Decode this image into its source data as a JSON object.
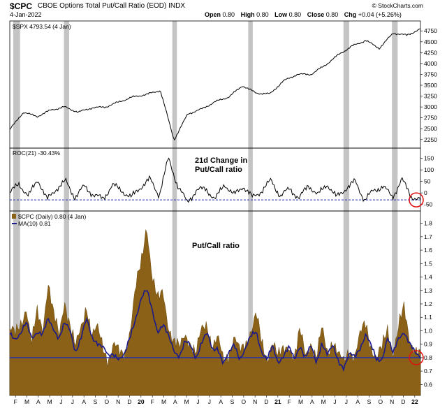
{
  "header": {
    "symbol": "$CPC",
    "title": "CBOE Options Total Put/Call Ratio (EOD)  INDX",
    "date": "4-Jan-2022",
    "brand": "© StockCharts.com",
    "open_label": "Open",
    "open_value": "0.80",
    "high_label": "High",
    "high_value": "0.80",
    "low_label": "Low",
    "low_value": "0.80",
    "close_label": "Close",
    "close_value": "0.80",
    "chg_label": "Chg",
    "chg_value": "+0.04 (+5.26%)"
  },
  "colors": {
    "spx_line": "#000000",
    "roc_line": "#000000",
    "roc_ref": "#1f2fb5",
    "cpc_fill": "#8a6116",
    "ma_line": "#1a1a8c",
    "ref_line": "#1f2fb5",
    "shade": "#c4c4c4",
    "circle": "#e01010"
  },
  "chart_data": [
    {
      "type": "line",
      "legend": "$SPX 4793.54 (4 Jan)",
      "series": [
        {
          "name": "$SPX",
          "x": [
            "2019-01",
            "2019-04",
            "2019-05",
            "2019-06",
            "2019-07",
            "2019-08",
            "2019-09",
            "2019-10",
            "2019-11",
            "2019-12",
            "2020-01",
            "2020-02",
            "2020-03",
            "2020-04",
            "2020-05",
            "2020-06",
            "2020-07",
            "2020-08",
            "2020-09",
            "2020-10",
            "2020-11",
            "2020-12",
            "2021-01",
            "2021-03",
            "2021-05",
            "2021-07",
            "2021-09",
            "2021-10",
            "2021-11",
            "2021-12",
            "2022-01"
          ],
          "values": [
            2480,
            2880,
            2780,
            2930,
            3000,
            2880,
            2980,
            3000,
            3120,
            3230,
            3290,
            3380,
            2240,
            2840,
            2950,
            3120,
            3230,
            3490,
            3320,
            3300,
            3600,
            3750,
            3750,
            3950,
            4200,
            4400,
            4530,
            4350,
            4700,
            4650,
            4793
          ]
        }
      ],
      "ylim": [
        2150,
        4850
      ],
      "yticks": [
        "4750",
        "4500",
        "4250",
        "4000",
        "3750",
        "3500",
        "3250",
        "3000",
        "2750",
        "2500",
        "2250"
      ]
    },
    {
      "type": "line",
      "legend": "ROC(21) -30.43%",
      "annotation": "21d Change in Put/Call ratio",
      "series": [
        {
          "name": "ROC(21)",
          "values": [
            0,
            40,
            -15,
            60,
            -30,
            20,
            50,
            -20,
            30,
            -10,
            -25,
            35,
            10,
            -20,
            25,
            60,
            -10,
            150,
            30,
            -40,
            10,
            20,
            -30,
            40,
            -10,
            30,
            -20,
            10,
            55,
            -15,
            20,
            -25,
            35,
            -10,
            40,
            -20,
            20,
            50,
            -30,
            10,
            30,
            -20,
            60,
            -15,
            -30
          ]
        }
      ],
      "reference": -30,
      "ylim": [
        -60,
        170
      ],
      "yticks": [
        "150",
        "100",
        "50",
        "0",
        "-50"
      ]
    },
    {
      "type": "area",
      "legend_cpc": "$CPC (Daily) 0.80 (4 Jan)",
      "legend_ma": "MA(10) 0.81",
      "annotation": "Put/Call ratio",
      "series": [
        {
          "name": "$CPC",
          "values": [
            1.02,
            0.95,
            1.05,
            1.2,
            0.9,
            1.12,
            1.02,
            1.38,
            1.1,
            0.95,
            1.25,
            1.05,
            0.85,
            1.02,
            1.22,
            0.95,
            1.0,
            0.9,
            0.8,
            0.88,
            0.82,
            0.85,
            1.02,
            1.3,
            1.5,
            1.82,
            1.4,
            1.2,
            1.3,
            1.05,
            0.9,
            0.85,
            1.0,
            0.92,
            0.8,
            1.0,
            1.08,
            0.88,
            0.92,
            0.78,
            0.85,
            0.95,
            0.82,
            0.9,
            1.02,
            1.12,
            0.88,
            0.8,
            0.95,
            0.78,
            0.85,
            0.92,
            0.8,
            0.98,
            0.82,
            0.94,
            0.78,
            1.0,
            0.85,
            0.95,
            0.8,
            0.75,
            0.88,
            0.82,
            0.95,
            1.05,
            0.9,
            0.8,
            0.85,
            1.02,
            0.85,
            1.02,
            1.15,
            0.95,
            0.88,
            0.8
          ]
        },
        {
          "name": "MA(10)",
          "values": [
            0.98,
            0.95,
            0.98,
            1.05,
            0.95,
            1.0,
            0.97,
            1.08,
            1.02,
            0.95,
            1.05,
            1.0,
            0.85,
            0.95,
            1.08,
            0.95,
            0.92,
            0.88,
            0.8,
            0.83,
            0.8,
            0.82,
            0.95,
            1.1,
            1.25,
            1.3,
            1.15,
            1.0,
            1.05,
            0.95,
            0.85,
            0.82,
            0.92,
            0.88,
            0.8,
            0.92,
            0.98,
            0.85,
            0.88,
            0.76,
            0.82,
            0.9,
            0.8,
            0.86,
            0.95,
            1.0,
            0.85,
            0.78,
            0.88,
            0.77,
            0.82,
            0.87,
            0.78,
            0.9,
            0.8,
            0.88,
            0.76,
            0.92,
            0.82,
            0.88,
            0.78,
            0.73,
            0.82,
            0.8,
            0.88,
            0.98,
            0.88,
            0.78,
            0.8,
            0.95,
            0.82,
            0.95,
            1.0,
            0.9,
            0.83,
            0.81
          ]
        }
      ],
      "reference": 0.8,
      "ylim": [
        0.55,
        1.85
      ],
      "yticks": [
        "1.8",
        "1.7",
        "1.6",
        "1.5",
        "1.4",
        "1.3",
        "1.2",
        "1.1",
        "1.0",
        "0.9",
        "0.8",
        "0.7",
        "0.6"
      ]
    }
  ],
  "x_axis": {
    "labels": [
      "F",
      "M",
      "A",
      "M",
      "J",
      "J",
      "A",
      "S",
      "O",
      "N",
      "D",
      "20",
      "F",
      "M",
      "A",
      "M",
      "J",
      "J",
      "A",
      "S",
      "O",
      "N",
      "D",
      "21",
      "F",
      "M",
      "A",
      "M",
      "J",
      "J",
      "A",
      "S",
      "O",
      "N",
      "D",
      "22"
    ],
    "bold": [
      "20",
      "21",
      "22"
    ]
  },
  "shaded_periods": [
    [
      0.3,
      0.9
    ],
    [
      4.75,
      5.2
    ],
    [
      14.25,
      14.65
    ],
    [
      20.9,
      21.3
    ],
    [
      29.25,
      29.75
    ],
    [
      33.5,
      34.0
    ]
  ]
}
